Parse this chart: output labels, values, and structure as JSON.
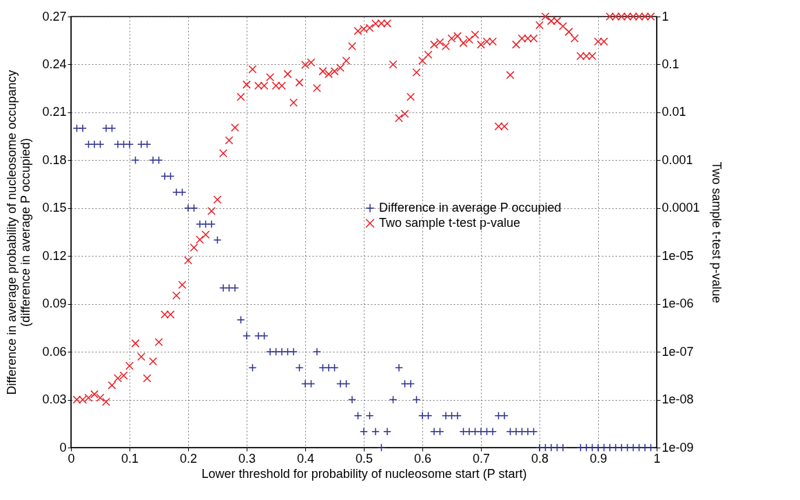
{
  "chart_data": {
    "type": "scatter",
    "xlabel": "Lower threshold for probability of nucleosome start (P start)",
    "ylabel": "Difference in average probability of nucleosome occupancy\n(difference in average P occupied)",
    "y2label": "Two sample t-test p-value",
    "x": [
      0.01,
      0.02,
      0.03,
      0.04,
      0.05,
      0.06,
      0.07,
      0.08,
      0.09,
      0.1,
      0.11,
      0.12,
      0.13,
      0.14,
      0.15,
      0.16,
      0.17,
      0.18,
      0.19,
      0.2,
      0.21,
      0.22,
      0.23,
      0.24,
      0.25,
      0.26,
      0.27,
      0.28,
      0.29,
      0.3,
      0.31,
      0.32,
      0.33,
      0.34,
      0.35,
      0.36,
      0.37,
      0.38,
      0.39,
      0.4,
      0.41,
      0.42,
      0.43,
      0.44,
      0.45,
      0.46,
      0.47,
      0.48,
      0.49,
      0.5,
      0.51,
      0.52,
      0.53,
      0.54,
      0.55,
      0.56,
      0.57,
      0.58,
      0.59,
      0.6,
      0.61,
      0.62,
      0.63,
      0.64,
      0.65,
      0.66,
      0.67,
      0.68,
      0.69,
      0.7,
      0.71,
      0.72,
      0.73,
      0.74,
      0.75,
      0.76,
      0.77,
      0.78,
      0.79,
      0.8,
      0.81,
      0.82,
      0.83,
      0.84,
      0.85,
      0.86,
      0.87,
      0.88,
      0.89,
      0.9,
      0.91,
      0.92,
      0.93,
      0.94,
      0.95,
      0.96,
      0.97,
      0.98,
      0.99
    ],
    "series": [
      {
        "name": "Difference in average P occupied",
        "color": "#2e3192",
        "marker": "cross",
        "values": [
          0.2,
          0.2,
          0.19,
          0.19,
          0.19,
          0.2,
          0.2,
          0.19,
          0.19,
          0.19,
          0.18,
          0.19,
          0.19,
          0.18,
          0.18,
          0.17,
          0.17,
          0.16,
          0.16,
          0.15,
          0.15,
          0.14,
          0.14,
          0.14,
          0.13,
          0.1,
          0.1,
          0.1,
          0.08,
          0.07,
          0.05,
          0.07,
          0.07,
          0.06,
          0.06,
          0.06,
          0.06,
          0.06,
          0.05,
          0.04,
          0.04,
          0.06,
          0.05,
          0.05,
          0.05,
          0.04,
          0.04,
          0.03,
          0.02,
          0.01,
          0.02,
          0.01,
          0,
          0.01,
          0.03,
          0.05,
          0.04,
          0.04,
          0.03,
          0.02,
          0.02,
          0.01,
          0.01,
          0.02,
          0.02,
          0.02,
          0.01,
          0.01,
          0.01,
          0.01,
          0.01,
          0.01,
          0.02,
          0.02,
          0.01,
          0.01,
          0.01,
          0.01,
          0.01,
          0,
          0,
          0,
          0,
          0,
          null,
          null,
          0,
          0,
          0,
          0,
          0,
          0,
          0,
          0,
          0,
          0,
          0,
          0,
          0
        ]
      },
      {
        "name": "Two sample t-test p-value",
        "color": "#ed1c24",
        "marker": "x",
        "axis": "y2",
        "values": [
          1e-08,
          1e-08,
          1.1e-08,
          1.3e-08,
          1.1e-08,
          9e-09,
          2e-08,
          2.8e-08,
          3.2e-08,
          5.1e-08,
          1.5e-07,
          7.9e-08,
          2.8e-08,
          6.3e-08,
          1.6e-07,
          6e-07,
          6e-07,
          1.5e-06,
          2.5e-06,
          8.1e-06,
          1.5e-05,
          2.2e-05,
          2.8e-05,
          8.7e-05,
          0.00015,
          0.0014,
          0.0026,
          0.0048,
          0.021,
          0.038,
          0.079,
          0.036,
          0.036,
          0.054,
          0.036,
          0.036,
          0.063,
          0.016,
          0.042,
          0.098,
          0.11,
          0.032,
          0.072,
          0.063,
          0.072,
          0.085,
          0.12,
          0.24,
          0.5,
          0.55,
          0.58,
          0.71,
          0.72,
          0.72,
          0.1,
          0.0076,
          0.0093,
          0.021,
          0.068,
          0.12,
          0.16,
          0.26,
          0.29,
          0.24,
          0.35,
          0.39,
          0.28,
          0.33,
          0.42,
          0.26,
          0.3,
          0.3,
          0.0051,
          0.0051,
          0.06,
          0.26,
          0.35,
          0.35,
          0.35,
          0.66,
          1,
          0.81,
          0.81,
          0.63,
          0.48,
          0.35,
          0.15,
          0.15,
          0.15,
          0.3,
          0.3,
          1,
          1,
          1,
          1,
          1,
          1,
          1,
          1
        ]
      }
    ],
    "xlim": [
      0,
      1
    ],
    "xticks": [
      0,
      0.1,
      0.2,
      0.3,
      0.4,
      0.5,
      0.6,
      0.7,
      0.8,
      0.9,
      1
    ],
    "ylim": [
      0,
      0.27
    ],
    "yticks": [
      0,
      0.03,
      0.06,
      0.09,
      0.12,
      0.15,
      0.18,
      0.21,
      0.24,
      0.27
    ],
    "log": "y2",
    "y2lim": [
      1e-09,
      1
    ],
    "y2ticks": [
      {
        "value": 1e-09,
        "label": "1e-09"
      },
      {
        "value": 1e-08,
        "label": "1e-08"
      },
      {
        "value": 1e-07,
        "label": "1e-07"
      },
      {
        "value": 1e-06,
        "label": "1e-06"
      },
      {
        "value": 1e-05,
        "label": "1e-05"
      },
      0.0001,
      0.001,
      0.01,
      0.1,
      1
    ],
    "grid": true,
    "legend": "right"
  }
}
